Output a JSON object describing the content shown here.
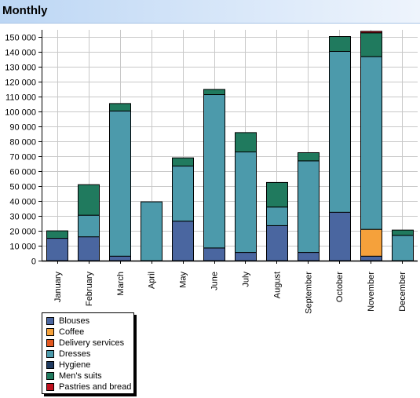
{
  "header": {
    "title": "Monthly"
  },
  "chart_data": {
    "type": "bar",
    "stacked": true,
    "categories": [
      "January",
      "February",
      "March",
      "April",
      "May",
      "June",
      "July",
      "August",
      "September",
      "October",
      "November",
      "December"
    ],
    "ylim": [
      0,
      155000
    ],
    "yticks": [
      0,
      10000,
      20000,
      30000,
      40000,
      50000,
      60000,
      70000,
      80000,
      90000,
      100000,
      110000,
      120000,
      130000,
      140000,
      150000
    ],
    "ytick_labels": [
      "0",
      "10 000",
      "20 000",
      "30 000",
      "40 000",
      "50 000",
      "60 000",
      "70 000",
      "80 000",
      "90 000",
      "100 000",
      "110 000",
      "120 000",
      "130 000",
      "140 000",
      "150 000"
    ],
    "grid": true,
    "legend_position": "bottom-left",
    "series": [
      {
        "name": "Blouses",
        "color": "#4a66a0",
        "values": [
          15000,
          16000,
          3000,
          0,
          26500,
          8500,
          5500,
          23500,
          5500,
          32500,
          3000,
          0
        ]
      },
      {
        "name": "Coffee",
        "color": "#f5a13b",
        "values": [
          0,
          0,
          0,
          0,
          0,
          0,
          0,
          0,
          0,
          0,
          18000,
          0
        ]
      },
      {
        "name": "Delivery services",
        "color": "#e2571e",
        "values": [
          0,
          0,
          0,
          0,
          0,
          0,
          0,
          0,
          0,
          0,
          0,
          0
        ]
      },
      {
        "name": "Dresses",
        "color": "#4c9aab",
        "values": [
          0,
          14500,
          97500,
          39500,
          37000,
          103000,
          67500,
          12500,
          61500,
          108000,
          116000,
          17000
        ]
      },
      {
        "name": "Hygiene",
        "color": "#1f3a5f",
        "values": [
          0,
          0,
          0,
          0,
          0,
          0,
          0,
          0,
          0,
          0,
          0,
          0
        ]
      },
      {
        "name": "Men's suits",
        "color": "#207a5e",
        "values": [
          5000,
          20500,
          5000,
          0,
          5500,
          3500,
          13000,
          16500,
          5500,
          10000,
          16000,
          3500
        ]
      },
      {
        "name": "Pastries and bread",
        "color": "#c0101e",
        "values": [
          0,
          0,
          0,
          0,
          0,
          0,
          0,
          0,
          0,
          0,
          1000,
          0
        ]
      }
    ]
  }
}
